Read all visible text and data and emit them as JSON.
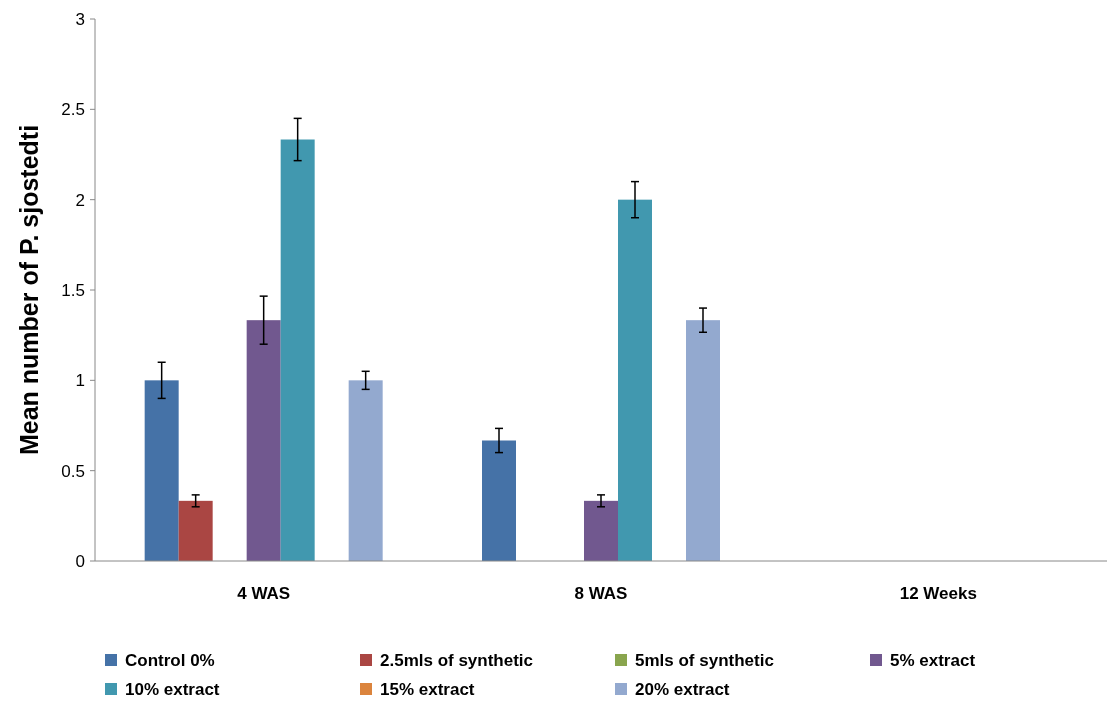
{
  "chart_data": {
    "type": "bar",
    "ylabel": "Mean number  of P. sjostedti",
    "categories": [
      "4 WAS",
      "8 WAS",
      "12 Weeks"
    ],
    "series": [
      {
        "name": "Control 0%",
        "color": "#4572a7",
        "values": [
          1.0,
          0.667,
          0
        ],
        "errors": [
          0.1,
          0.067,
          null
        ]
      },
      {
        "name": "2.5mls of synthetic",
        "color": "#aa4643",
        "values": [
          0.333,
          0,
          0
        ],
        "errors": [
          0.033,
          null,
          null
        ]
      },
      {
        "name": "5mls of synthetic",
        "color": "#89a54e",
        "values": [
          0,
          0,
          0
        ],
        "errors": [
          null,
          null,
          null
        ]
      },
      {
        "name": "5% extract",
        "color": "#71588f",
        "values": [
          1.333,
          0.333,
          0
        ],
        "errors": [
          0.133,
          0.033,
          null
        ]
      },
      {
        "name": "10% extract",
        "color": "#4198af",
        "values": [
          2.333,
          2.0,
          0
        ],
        "errors": [
          0.117,
          0.1,
          null
        ]
      },
      {
        "name": "15% extract",
        "color": "#db843d",
        "values": [
          0,
          0,
          0
        ],
        "errors": [
          null,
          null,
          null
        ]
      },
      {
        "name": "20% extract",
        "color": "#93a9cf",
        "values": [
          1.0,
          1.333,
          0
        ],
        "errors": [
          0.05,
          0.067,
          null
        ]
      }
    ],
    "ylim": [
      0,
      3
    ],
    "yticks": [
      0,
      0.5,
      1,
      1.5,
      2,
      2.5,
      3
    ],
    "legend": "bottom",
    "grid": false
  }
}
